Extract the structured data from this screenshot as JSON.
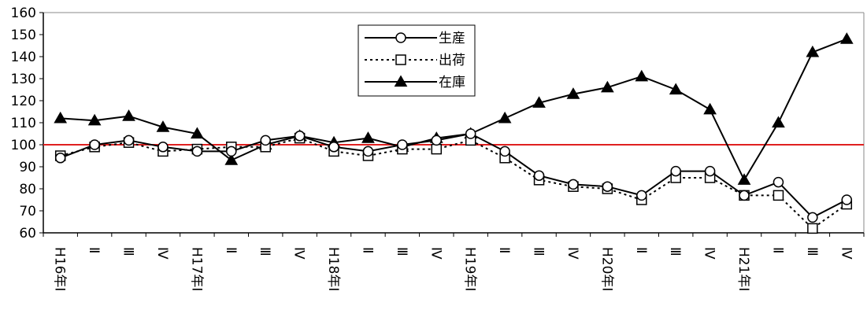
{
  "chart_data": {
    "type": "line",
    "categories": [
      "H16年Ⅰ",
      "Ⅱ",
      "Ⅲ",
      "Ⅳ",
      "H17年Ⅰ",
      "Ⅱ",
      "Ⅲ",
      "Ⅳ",
      "H18年Ⅰ",
      "Ⅱ",
      "Ⅲ",
      "Ⅳ",
      "H19年Ⅰ",
      "Ⅱ",
      "Ⅲ",
      "Ⅳ",
      "H20年Ⅰ",
      "Ⅱ",
      "Ⅲ",
      "Ⅳ",
      "H21年Ⅰ",
      "Ⅱ",
      "Ⅲ",
      "Ⅳ"
    ],
    "series": [
      {
        "name": "生産",
        "marker": "circle",
        "line": "solid",
        "values": [
          94,
          100,
          102,
          99,
          97,
          97,
          102,
          104,
          99,
          97,
          100,
          102,
          105,
          97,
          86,
          82,
          81,
          77,
          88,
          88,
          77,
          83,
          67,
          75
        ]
      },
      {
        "name": "出荷",
        "marker": "square",
        "line": "dotted",
        "values": [
          95,
          99,
          101,
          97,
          98,
          99,
          99,
          103,
          97,
          95,
          98,
          98,
          102,
          94,
          84,
          81,
          80,
          75,
          85,
          85,
          77,
          77,
          62,
          73
        ]
      },
      {
        "name": "在庫",
        "marker": "triangle",
        "line": "solid",
        "values": [
          112,
          111,
          113,
          108,
          105,
          93,
          100,
          104,
          101,
          103,
          99,
          103,
          105,
          112,
          119,
          123,
          126,
          131,
          125,
          116,
          84,
          110,
          142,
          148
        ]
      }
    ],
    "reference_line": {
      "value": 100,
      "color": "#e02020"
    },
    "ylim": [
      60,
      160
    ],
    "yticks": [
      "60",
      "70",
      "80",
      "90",
      "100",
      "110",
      "120",
      "130",
      "140",
      "150",
      "160"
    ],
    "legend_placement": "top-center",
    "grid": false
  }
}
